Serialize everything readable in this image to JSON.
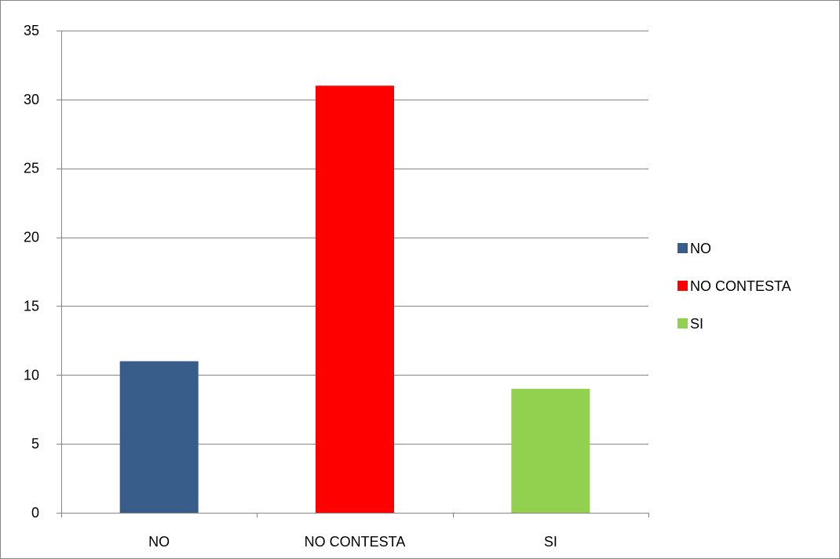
{
  "chart_data": {
    "type": "bar",
    "title": "",
    "xlabel": "",
    "ylabel": "",
    "categories": [
      "NO",
      "NO CONTESTA",
      "SI"
    ],
    "values": [
      11,
      31,
      9
    ],
    "colors": [
      "#385D8A",
      "#FF0000",
      "#92D050"
    ],
    "ylim": [
      0,
      35
    ],
    "yticks": [
      0,
      5,
      10,
      15,
      20,
      25,
      30,
      35
    ],
    "grid": true,
    "legend": {
      "position": "right",
      "entries": [
        {
          "label": "NO",
          "color": "#385D8A"
        },
        {
          "label": "NO CONTESTA",
          "color": "#FF0000"
        },
        {
          "label": "SI",
          "color": "#92D050"
        }
      ]
    }
  }
}
